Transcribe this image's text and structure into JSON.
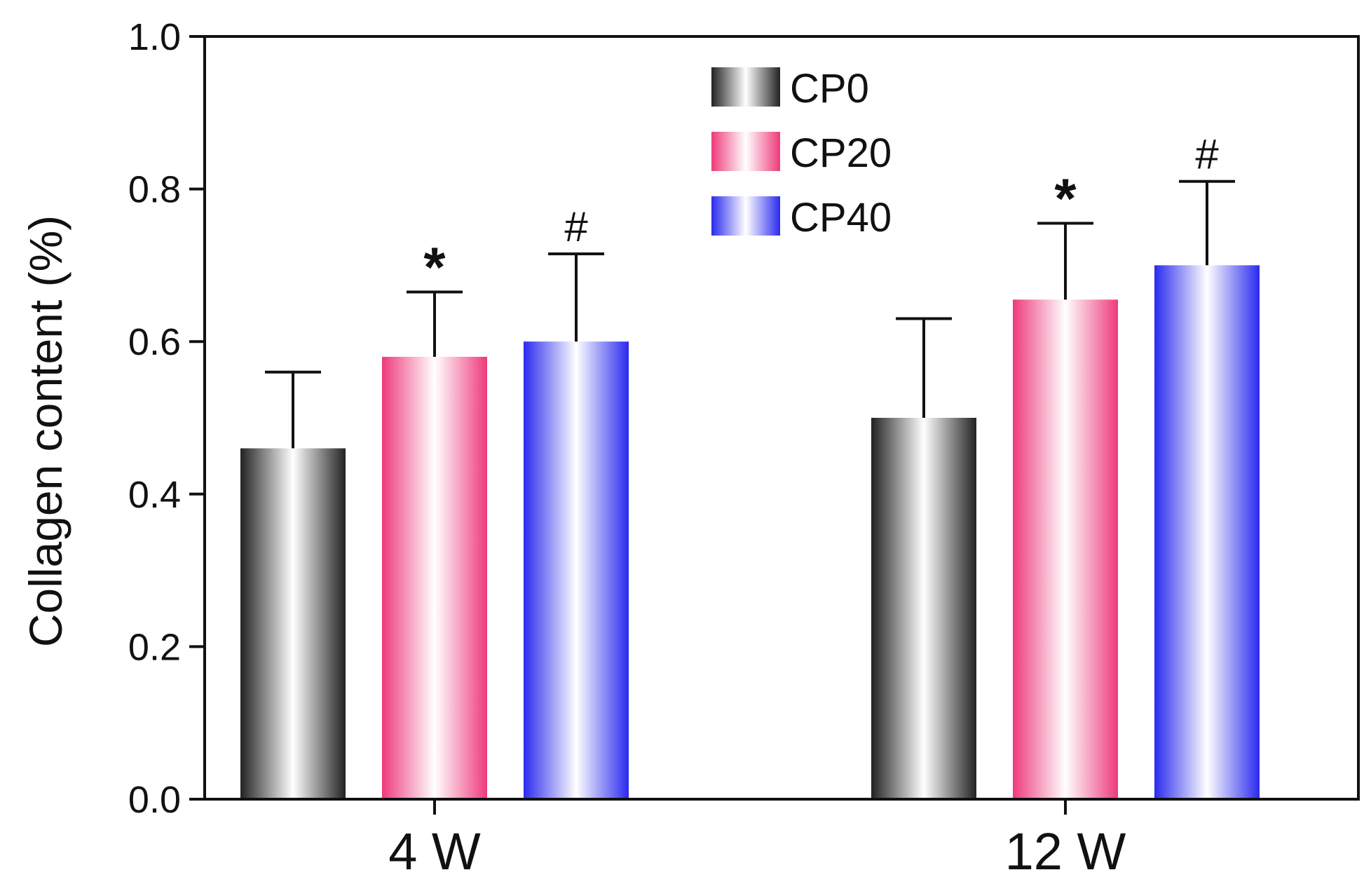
{
  "chart_data": {
    "type": "bar",
    "categories": [
      "4 W",
      "12 W"
    ],
    "series": [
      {
        "name": "CP0",
        "values": [
          0.46,
          0.5
        ],
        "errors": [
          0.1,
          0.13
        ],
        "annotations": [
          "",
          ""
        ],
        "color": "#222222"
      },
      {
        "name": "CP20",
        "values": [
          0.58,
          0.655
        ],
        "errors": [
          0.085,
          0.1
        ],
        "annotations": [
          "*",
          "*"
        ],
        "color": "#ee3a7a"
      },
      {
        "name": "CP40",
        "values": [
          0.6,
          0.7
        ],
        "errors": [
          0.115,
          0.11
        ],
        "annotations": [
          "#",
          "#"
        ],
        "color": "#2a2aee"
      }
    ],
    "ylabel": "Collagen content (%)",
    "xlabel": "",
    "ylim": [
      0.0,
      1.0
    ],
    "yticks": [
      "0.0",
      "0.2",
      "0.4",
      "0.6",
      "0.8",
      "1.0"
    ],
    "grid": false,
    "legend_position": "top-center"
  }
}
